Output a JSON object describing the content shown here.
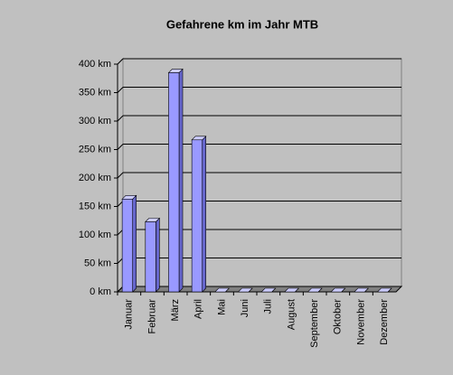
{
  "chart_data": {
    "type": "bar",
    "title": "Gefahrene km im Jahr MTB",
    "categories": [
      "Januar",
      "Februar",
      "März",
      "April",
      "Mai",
      "Juni",
      "Juli",
      "August",
      "September",
      "Oktober",
      "November",
      "Dezember"
    ],
    "values": [
      163,
      123,
      385,
      267,
      0,
      0,
      0,
      0,
      0,
      0,
      0,
      0
    ],
    "color": "#9999ff",
    "ylim": [
      0,
      400
    ],
    "yticks": [
      {
        "value": 0,
        "label": "0 km"
      },
      {
        "value": 50,
        "label": "50 km"
      },
      {
        "value": 100,
        "label": "100 km"
      },
      {
        "value": 150,
        "label": "150 km"
      },
      {
        "value": 200,
        "label": "200 km"
      },
      {
        "value": 250,
        "label": "250 km"
      },
      {
        "value": 300,
        "label": "300 km"
      },
      {
        "value": 350,
        "label": "350 km"
      },
      {
        "value": 400,
        "label": "400 km"
      }
    ],
    "grid": true
  }
}
